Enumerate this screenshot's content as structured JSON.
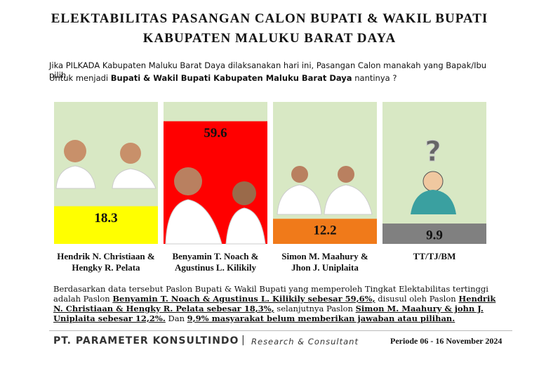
{
  "chart_data": {
    "type": "bar",
    "title": "ELEKTABILITAS PASANGAN CALON BUPATI & WAKIL BUPATI",
    "subtitle": "KABUPATEN MALUKU BARAT DAYA",
    "question_line1": "Jika PILKADA Kabupaten Maluku Barat Daya dilaksanakan hari ini, Pasangan Calon manakah yang Bapak/Ibu pilih",
    "question_line2": [
      {
        "text": "Untuk menjadi ",
        "bold": false
      },
      {
        "text": "Bupati & Wakil Bupati Kabupaten Maluku Barat Daya",
        "bold": true
      },
      {
        "text": " nantinya ?",
        "bold": false
      }
    ],
    "categories": [
      "Hendrik N. Christiaan & Hengky R. Pelata",
      "Benyamin T. Noach & Agustinus L. Kilikily",
      "Simon M. Maahury & Jhon J. Uniplaita",
      "TT/TJ/BM"
    ],
    "values": [
      18.3,
      59.6,
      12.2,
      9.9
    ],
    "colors": [
      "#ffff00",
      "#ff0000",
      "#f07a1a",
      "#808080"
    ],
    "panel_color": "#d8e8c4",
    "ylim": [
      0,
      69
    ],
    "summary": [
      {
        "text": "Berdasarkan data tersebut Paslon Bupati & Wakil Bupati yang memperoleh Tingkat Elektabilitas tertinggi adalah Paslon ",
        "underline": false
      },
      {
        "text": "Benyamin T. Noach & Agustinus L. Kilikily sebesar 59,6%,",
        "underline": true
      },
      {
        "text": " disusul oleh Paslon ",
        "underline": false
      },
      {
        "text": "Hendrik N. Christiaan & Hengky R. Pelata sebesar 18,3%,",
        "underline": true
      },
      {
        "text": " selanjutnya Paslon ",
        "underline": false
      },
      {
        "text": "Simon M. Maahury & john J. Uniplaita sebesar 12,2%.",
        "underline": true
      },
      {
        "text": " Dan ",
        "underline": false
      },
      {
        "text": "9,9% masyarakat belum memberikan jawaban atau pilihan.",
        "underline": true
      }
    ],
    "footer_company": "PT. PARAMETER KONSULTINDO",
    "footer_separator": "|",
    "footer_tagline": "Research & Consultant",
    "footer_period": "Periode 06 - 16 November 2024"
  }
}
